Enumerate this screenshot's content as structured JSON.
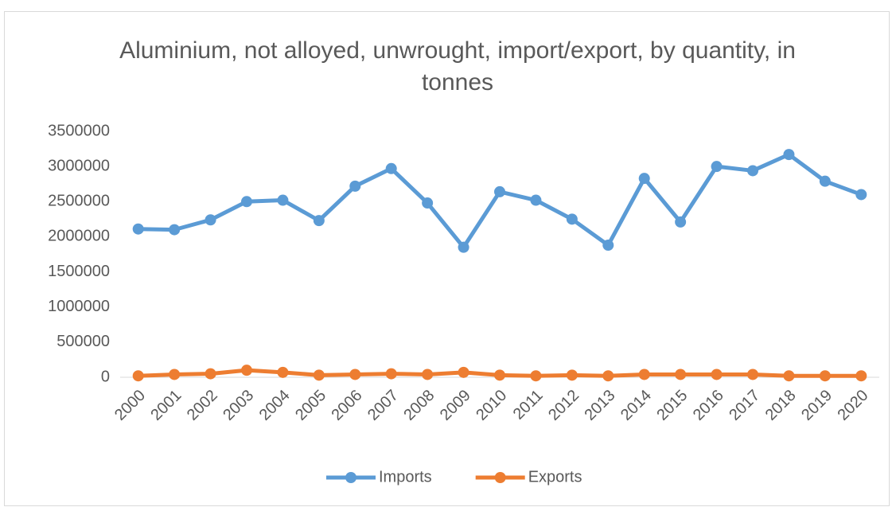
{
  "chart_data": {
    "type": "line",
    "title": "Aluminium, not alloyed, unwrought, import/export, by quantity, in tonnes",
    "categories": [
      "2000",
      "2001",
      "2002",
      "2003",
      "2004",
      "2005",
      "2006",
      "2007",
      "2008",
      "2009",
      "2010",
      "2011",
      "2012",
      "2013",
      "2014",
      "2015",
      "2016",
      "2017",
      "2018",
      "2019",
      "2020"
    ],
    "series": [
      {
        "name": "Imports",
        "color": "#5b9bd5",
        "values": [
          2110000,
          2100000,
          2240000,
          2500000,
          2520000,
          2230000,
          2720000,
          2970000,
          2480000,
          1850000,
          2640000,
          2520000,
          2250000,
          1880000,
          2830000,
          2210000,
          3000000,
          2940000,
          3170000,
          2790000,
          2600000
        ]
      },
      {
        "name": "Exports",
        "color": "#ed7d31",
        "values": [
          20000,
          40000,
          50000,
          100000,
          70000,
          30000,
          40000,
          50000,
          40000,
          70000,
          30000,
          20000,
          30000,
          20000,
          40000,
          40000,
          40000,
          40000,
          20000,
          20000,
          20000
        ]
      }
    ],
    "ylim": [
      0,
      3500000
    ],
    "yticks": [
      0,
      500000,
      1000000,
      1500000,
      2000000,
      2500000,
      3000000,
      3500000
    ],
    "grid": false,
    "legend": "bottom"
  }
}
